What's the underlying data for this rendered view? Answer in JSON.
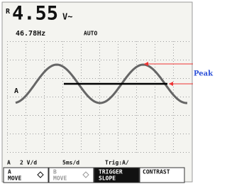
{
  "reading": {
    "channel": "R",
    "value": "4.55",
    "unit": "V~",
    "frequency": "46.78Hz",
    "mode": "AUTO"
  },
  "trace_label": "A",
  "annotation": "Peak",
  "status": {
    "channel": "A",
    "volts_per_div": "2 V/d",
    "time_per_div": "5ms/d",
    "trigger": "Trig:A/"
  },
  "softkeys": [
    {
      "lines": [
        "A",
        "MOVE"
      ]
    },
    {
      "lines": [
        "B",
        "MOVE"
      ]
    },
    {
      "lines": [
        "TRIGGER",
        "SLOPE"
      ]
    },
    {
      "lines": [
        "CONTRAST"
      ]
    }
  ]
}
